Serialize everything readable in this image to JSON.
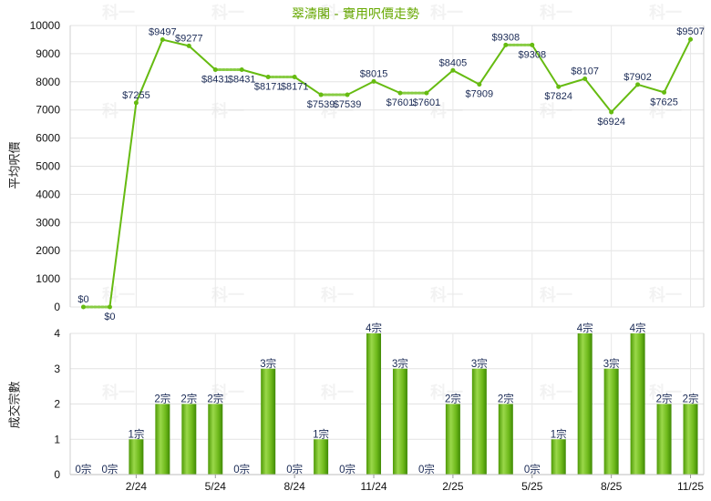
{
  "chart_data": [
    {
      "type": "line",
      "title": "翠濤閣 - 實用呎價走勢",
      "ylabel": "平均呎價",
      "ylim": [
        0,
        10000
      ],
      "yticks": [
        0,
        1000,
        2000,
        3000,
        4000,
        5000,
        6000,
        7000,
        8000,
        9000,
        10000
      ],
      "grid": true,
      "line_color": "#66bb11",
      "interpolated_segment_color": "#88cc44",
      "values": [
        0,
        0,
        7255,
        9497,
        9277,
        8431,
        8431,
        8171,
        8171,
        7539,
        7539,
        8015,
        7601,
        7601,
        8405,
        7909,
        9308,
        9308,
        7824,
        8107,
        6924,
        7902,
        7625,
        9507
      ],
      "labels": [
        "$0",
        "$0",
        "$7255",
        "$9497",
        "$9277",
        "$8431",
        "$8431",
        "$8171",
        "$8171",
        "$7539",
        "$7539",
        "$8015",
        "$7601",
        "$7601",
        "$8405",
        "$7909",
        "$9308",
        "$9308",
        "$7824",
        "$8107",
        "$6924",
        "$7902",
        "$7625",
        "$9507"
      ],
      "interpolated_points": [
        1,
        6,
        8,
        10,
        13,
        17
      ]
    },
    {
      "type": "bar",
      "ylabel": "成交宗數",
      "ylim": [
        0,
        4
      ],
      "yticks": [
        0,
        1,
        2,
        3,
        4
      ],
      "grid": true,
      "bar_color": "#77c020",
      "values": [
        0,
        0,
        1,
        2,
        2,
        2,
        0,
        3,
        0,
        1,
        0,
        4,
        3,
        0,
        2,
        3,
        2,
        0,
        1,
        4,
        3,
        4,
        2,
        2
      ],
      "labels": [
        "0宗",
        "0宗",
        "1宗",
        "2宗",
        "2宗",
        "2宗",
        "0宗",
        "3宗",
        "0宗",
        "1宗",
        "0宗",
        "4宗",
        "3宗",
        "0宗",
        "2宗",
        "3宗",
        "2宗",
        "0宗",
        "1宗",
        "4宗",
        "3宗",
        "4宗",
        "2宗",
        "2宗"
      ],
      "x_tick_labels": [
        {
          "index": 2,
          "label": "2/24"
        },
        {
          "index": 5,
          "label": "5/24"
        },
        {
          "index": 8,
          "label": "8/24"
        },
        {
          "index": 11,
          "label": "11/24"
        },
        {
          "index": 14,
          "label": "2/25"
        },
        {
          "index": 17,
          "label": "5/25"
        },
        {
          "index": 20,
          "label": "8/25"
        },
        {
          "index": 23,
          "label": "11/25"
        }
      ]
    }
  ],
  "watermark_text": "科一"
}
